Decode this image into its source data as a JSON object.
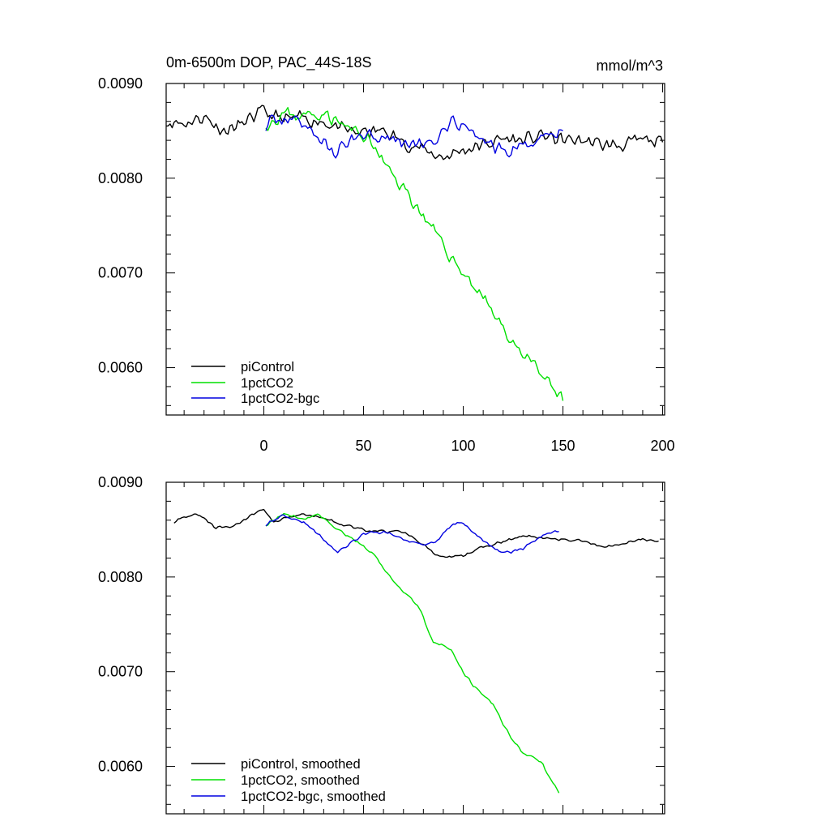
{
  "chart_data": [
    {
      "type": "line",
      "title": "0m-6500m DOP, PAC_44S-18S",
      "units": "mmol/m^3",
      "xlim": [
        -49,
        201
      ],
      "ylim": [
        0.0055,
        0.009
      ],
      "yticks": [
        "0.0090",
        "0.0080",
        "0.0070",
        "0.0060"
      ],
      "ytick_values": [
        0.009,
        0.008,
        0.007,
        0.006
      ],
      "xticks": [
        "0",
        "50",
        "100",
        "150",
        "200"
      ],
      "xtick_values": [
        0,
        50,
        100,
        150,
        200
      ],
      "series": [
        {
          "name": "piControl",
          "color": "#000000",
          "noise": 0.00018,
          "seed": 11,
          "points": [
            [
              -49,
              0.0086
            ],
            [
              -40,
              0.00858
            ],
            [
              -30,
              0.00865
            ],
            [
              -20,
              0.0085
            ],
            [
              -10,
              0.00858
            ],
            [
              -1,
              0.0087
            ],
            [
              10,
              0.00862
            ],
            [
              20,
              0.00863
            ],
            [
              30,
              0.0086
            ],
            [
              40,
              0.0085
            ],
            [
              50,
              0.00848
            ],
            [
              60,
              0.0085
            ],
            [
              70,
              0.00838
            ],
            [
              80,
              0.0083
            ],
            [
              90,
              0.00822
            ],
            [
              100,
              0.0083
            ],
            [
              110,
              0.00835
            ],
            [
              120,
              0.00842
            ],
            [
              130,
              0.0084
            ],
            [
              140,
              0.00845
            ],
            [
              150,
              0.0084
            ],
            [
              160,
              0.0084
            ],
            [
              170,
              0.00835
            ],
            [
              180,
              0.00835
            ],
            [
              190,
              0.0084
            ],
            [
              200,
              0.00838
            ]
          ]
        },
        {
          "name": "1pctCO2",
          "color": "#00e000",
          "noise": 0.00018,
          "seed": 23,
          "points": [
            [
              1,
              0.00858
            ],
            [
              10,
              0.00868
            ],
            [
              20,
              0.00866
            ],
            [
              30,
              0.0087
            ],
            [
              40,
              0.00855
            ],
            [
              50,
              0.00845
            ],
            [
              55,
              0.00835
            ],
            [
              60,
              0.00815
            ],
            [
              70,
              0.0079
            ],
            [
              80,
              0.0076
            ],
            [
              90,
              0.00728
            ],
            [
              100,
              0.007
            ],
            [
              110,
              0.00675
            ],
            [
              120,
              0.0064
            ],
            [
              130,
              0.00615
            ],
            [
              140,
              0.0059
            ],
            [
              150,
              0.00565
            ]
          ]
        },
        {
          "name": "1pctCO2-bgc",
          "color": "#0000e0",
          "noise": 0.00018,
          "seed": 37,
          "points": [
            [
              1,
              0.00855
            ],
            [
              10,
              0.00865
            ],
            [
              20,
              0.00858
            ],
            [
              30,
              0.00838
            ],
            [
              35,
              0.00825
            ],
            [
              40,
              0.00835
            ],
            [
              50,
              0.00848
            ],
            [
              60,
              0.00845
            ],
            [
              70,
              0.00838
            ],
            [
              80,
              0.00835
            ],
            [
              90,
              0.00845
            ],
            [
              95,
              0.00858
            ],
            [
              100,
              0.00855
            ],
            [
              110,
              0.0084
            ],
            [
              120,
              0.00828
            ],
            [
              130,
              0.00832
            ],
            [
              140,
              0.00845
            ],
            [
              150,
              0.0085
            ]
          ]
        }
      ],
      "legend": [
        "piControl",
        "1pctCO2",
        "1pctCO2-bgc"
      ],
      "legend_location": "lower-left"
    },
    {
      "type": "line",
      "title": "",
      "xlim": [
        -49,
        201
      ],
      "ylim": [
        0.0055,
        0.009
      ],
      "yticks": [
        "0.0090",
        "0.0080",
        "0.0070",
        "0.0060"
      ],
      "ytick_values": [
        0.009,
        0.008,
        0.007,
        0.006
      ],
      "series": [
        {
          "name": "piControl, smoothed",
          "color": "#000000",
          "noise": 4e-05,
          "seed": 5,
          "points": [
            [
              -45,
              0.00858
            ],
            [
              -40,
              0.00864
            ],
            [
              -32,
              0.00866
            ],
            [
              -24,
              0.00852
            ],
            [
              -15,
              0.00854
            ],
            [
              -5,
              0.00866
            ],
            [
              0,
              0.00872
            ],
            [
              5,
              0.00858
            ],
            [
              12,
              0.00863
            ],
            [
              20,
              0.00866
            ],
            [
              30,
              0.00862
            ],
            [
              40,
              0.00855
            ],
            [
              50,
              0.0085
            ],
            [
              60,
              0.00848
            ],
            [
              70,
              0.00848
            ],
            [
              80,
              0.00835
            ],
            [
              85,
              0.00825
            ],
            [
              90,
              0.0082
            ],
            [
              100,
              0.00822
            ],
            [
              110,
              0.00832
            ],
            [
              120,
              0.00838
            ],
            [
              130,
              0.00843
            ],
            [
              140,
              0.00842
            ],
            [
              150,
              0.0084
            ],
            [
              160,
              0.00838
            ],
            [
              170,
              0.00832
            ],
            [
              180,
              0.00835
            ],
            [
              190,
              0.0084
            ],
            [
              198,
              0.00838
            ]
          ]
        },
        {
          "name": "1pctCO2, smoothed",
          "color": "#00e000",
          "noise": 4e-05,
          "seed": 17,
          "points": [
            [
              1,
              0.00855
            ],
            [
              10,
              0.00866
            ],
            [
              20,
              0.00862
            ],
            [
              28,
              0.00866
            ],
            [
              35,
              0.00852
            ],
            [
              45,
              0.0084
            ],
            [
              50,
              0.00833
            ],
            [
              55,
              0.00825
            ],
            [
              60,
              0.0081
            ],
            [
              65,
              0.00795
            ],
            [
              70,
              0.00785
            ],
            [
              75,
              0.00775
            ],
            [
              80,
              0.00758
            ],
            [
              85,
              0.0073
            ],
            [
              90,
              0.00728
            ],
            [
              95,
              0.0072
            ],
            [
              100,
              0.007
            ],
            [
              105,
              0.00685
            ],
            [
              110,
              0.00676
            ],
            [
              115,
              0.00666
            ],
            [
              120,
              0.00645
            ],
            [
              125,
              0.00628
            ],
            [
              130,
              0.00615
            ],
            [
              135,
              0.0061
            ],
            [
              140,
              0.00602
            ],
            [
              145,
              0.00582
            ],
            [
              148,
              0.00572
            ]
          ]
        },
        {
          "name": "1pctCO2-bgc, smoothed",
          "color": "#0000e0",
          "noise": 4e-05,
          "seed": 29,
          "points": [
            [
              1,
              0.00855
            ],
            [
              10,
              0.00866
            ],
            [
              20,
              0.00858
            ],
            [
              30,
              0.0084
            ],
            [
              37,
              0.00826
            ],
            [
              42,
              0.00833
            ],
            [
              50,
              0.00845
            ],
            [
              60,
              0.00848
            ],
            [
              70,
              0.0084
            ],
            [
              80,
              0.00835
            ],
            [
              85,
              0.00836
            ],
            [
              90,
              0.00845
            ],
            [
              95,
              0.00856
            ],
            [
              100,
              0.00857
            ],
            [
              110,
              0.00838
            ],
            [
              120,
              0.00825
            ],
            [
              130,
              0.0083
            ],
            [
              140,
              0.00845
            ],
            [
              145,
              0.00848
            ],
            [
              148,
              0.00848
            ]
          ]
        }
      ],
      "legend": [
        "piControl, smoothed",
        "1pctCO2, smoothed",
        "1pctCO2-bgc, smoothed"
      ],
      "legend_location": "lower-left"
    }
  ]
}
